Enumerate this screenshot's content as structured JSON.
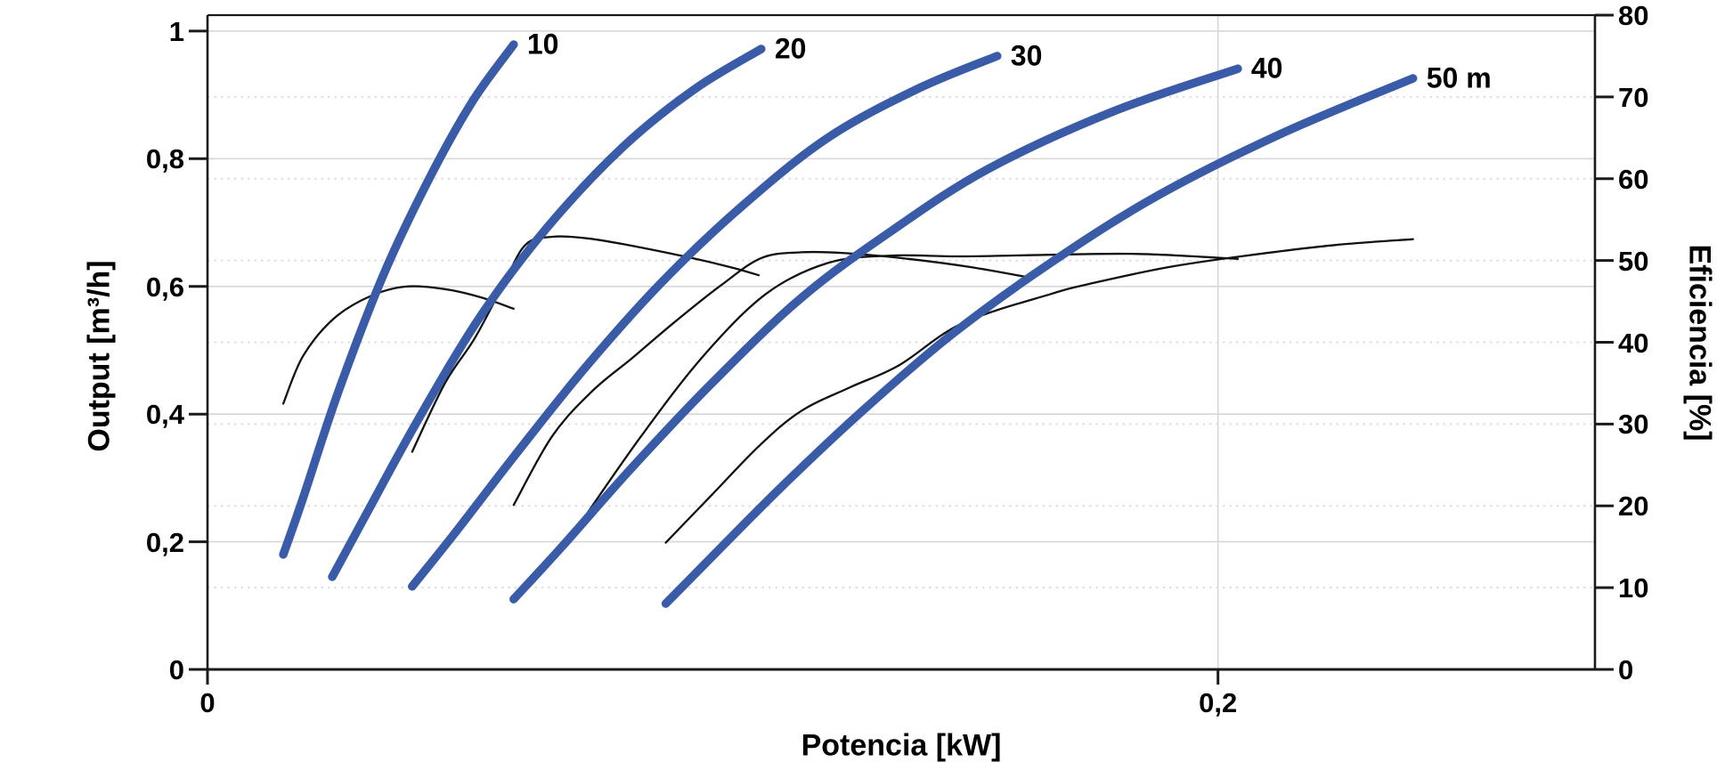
{
  "chart_data": {
    "type": "line",
    "title": "",
    "xlabel": "Potencia [kW]",
    "ylabel_left": "Output [m³/h]",
    "ylabel_right": "Eficiencia [%]",
    "x_range": [
      0,
      0.2746
    ],
    "y_left_range": [
      0,
      1.025
    ],
    "y_right_range": [
      0,
      80
    ],
    "grid": "horizontal solid at left-axis ticks, horizontal dotted at right-axis ticks, vertical solid at x=0.2",
    "legend_position": "none",
    "x_ticks": [
      {
        "value": 0,
        "label": "0"
      },
      {
        "value": 0.2,
        "label": "0,2"
      }
    ],
    "y_left_ticks": [
      {
        "value": 1.0,
        "label": "1"
      },
      {
        "value": 0.8,
        "label": "0,8"
      },
      {
        "value": 0.6,
        "label": "0,6"
      },
      {
        "value": 0.4,
        "label": "0,4"
      },
      {
        "value": 0.2,
        "label": "0,2"
      },
      {
        "value": 0.0,
        "label": "0"
      }
    ],
    "y_right_ticks": [
      {
        "value": 80,
        "label": "80"
      },
      {
        "value": 70,
        "label": "70"
      },
      {
        "value": 60,
        "label": "60"
      },
      {
        "value": 50,
        "label": "50"
      },
      {
        "value": 40,
        "label": "40"
      },
      {
        "value": 30,
        "label": "30"
      },
      {
        "value": 20,
        "label": "20"
      },
      {
        "value": 10,
        "label": "10"
      },
      {
        "value": 0,
        "label": "0"
      }
    ],
    "colors": {
      "head_curve": "#3A5CA8",
      "efficiency_curve": "#111111",
      "grid_solid": "#d7d7d7",
      "grid_dotted": "#dedede",
      "axis": "#1a1a1a"
    },
    "head_curves": [
      {
        "name": "head-10m",
        "label": "10",
        "axis": "left",
        "points": [
          [
            0.015,
            0.18
          ],
          [
            0.0189,
            0.268
          ],
          [
            0.0259,
            0.435
          ],
          [
            0.0347,
            0.616
          ],
          [
            0.0435,
            0.763
          ],
          [
            0.0523,
            0.888
          ],
          [
            0.0606,
            0.979
          ]
        ]
      },
      {
        "name": "head-20m",
        "label": "20",
        "axis": "left",
        "points": [
          [
            0.0247,
            0.145
          ],
          [
            0.0312,
            0.24
          ],
          [
            0.0418,
            0.393
          ],
          [
            0.0541,
            0.554
          ],
          [
            0.0673,
            0.693
          ],
          [
            0.0823,
            0.819
          ],
          [
            0.0964,
            0.909
          ],
          [
            0.1096,
            0.972
          ]
        ]
      },
      {
        "name": "head-30m",
        "label": "30",
        "axis": "left",
        "points": [
          [
            0.0405,
            0.13
          ],
          [
            0.0488,
            0.212
          ],
          [
            0.0611,
            0.338
          ],
          [
            0.0752,
            0.477
          ],
          [
            0.0902,
            0.609
          ],
          [
            0.1061,
            0.728
          ],
          [
            0.1228,
            0.833
          ],
          [
            0.1404,
            0.909
          ],
          [
            0.1563,
            0.961
          ]
        ]
      },
      {
        "name": "head-40m",
        "label": "40",
        "axis": "left",
        "points": [
          [
            0.0606,
            0.11
          ],
          [
            0.07,
            0.191
          ],
          [
            0.0841,
            0.317
          ],
          [
            0.0999,
            0.449
          ],
          [
            0.1175,
            0.582
          ],
          [
            0.1352,
            0.686
          ],
          [
            0.1545,
            0.784
          ],
          [
            0.1792,
            0.874
          ],
          [
            0.2039,
            0.941
          ]
        ]
      },
      {
        "name": "head-50m",
        "label": "50 m",
        "axis": "left",
        "points": [
          [
            0.0907,
            0.103
          ],
          [
            0.0999,
            0.177
          ],
          [
            0.114,
            0.289
          ],
          [
            0.1299,
            0.407
          ],
          [
            0.1475,
            0.526
          ],
          [
            0.1669,
            0.637
          ],
          [
            0.188,
            0.742
          ],
          [
            0.2127,
            0.84
          ],
          [
            0.2386,
            0.926
          ]
        ]
      }
    ],
    "efficiency_curves": [
      {
        "name": "eff-10m",
        "axis": "right",
        "points": [
          [
            0.015,
            32.5
          ],
          [
            0.0189,
            38.3
          ],
          [
            0.025,
            42.9
          ],
          [
            0.0321,
            45.6
          ],
          [
            0.0391,
            46.8
          ],
          [
            0.047,
            46.5
          ],
          [
            0.0541,
            45.5
          ],
          [
            0.0606,
            44.1
          ]
        ]
      },
      {
        "name": "eff-20m",
        "axis": "right",
        "points": [
          [
            0.0405,
            26.6
          ],
          [
            0.047,
            35.0
          ],
          [
            0.0529,
            40.5
          ],
          [
            0.0585,
            47.0
          ],
          [
            0.0629,
            51.9
          ],
          [
            0.0682,
            52.9
          ],
          [
            0.0752,
            52.7
          ],
          [
            0.0823,
            52.0
          ],
          [
            0.0951,
            50.4
          ],
          [
            0.1034,
            49.2
          ],
          [
            0.1091,
            48.2
          ]
        ]
      },
      {
        "name": "eff-30m",
        "axis": "right",
        "points": [
          [
            0.0606,
            20.1
          ],
          [
            0.0682,
            28.5
          ],
          [
            0.0761,
            34.0
          ],
          [
            0.0841,
            38.1
          ],
          [
            0.0929,
            42.7
          ],
          [
            0.1017,
            47.0
          ],
          [
            0.1096,
            50.3
          ],
          [
            0.1175,
            51.0
          ],
          [
            0.1263,
            50.9
          ],
          [
            0.1387,
            50.2
          ],
          [
            0.151,
            49.2
          ],
          [
            0.1628,
            47.9
          ]
        ]
      },
      {
        "name": "eff-40m",
        "axis": "right",
        "points": [
          [
            0.0735,
            17.6
          ],
          [
            0.0858,
            28.5
          ],
          [
            0.0981,
            38.3
          ],
          [
            0.1105,
            45.9
          ],
          [
            0.1228,
            49.7
          ],
          [
            0.1352,
            50.6
          ],
          [
            0.1493,
            50.5
          ],
          [
            0.1669,
            50.7
          ],
          [
            0.1845,
            50.8
          ],
          [
            0.2039,
            50.2
          ]
        ]
      },
      {
        "name": "eff-50m",
        "axis": "right",
        "points": [
          [
            0.0907,
            15.5
          ],
          [
            0.0999,
            21.4
          ],
          [
            0.1093,
            27.4
          ],
          [
            0.1175,
            31.6
          ],
          [
            0.1272,
            34.5
          ],
          [
            0.1369,
            37.2
          ],
          [
            0.1493,
            42.3
          ],
          [
            0.1669,
            45.9
          ],
          [
            0.1757,
            47.3
          ],
          [
            0.1903,
            49.2
          ],
          [
            0.2057,
            50.6
          ],
          [
            0.2233,
            51.9
          ],
          [
            0.2386,
            52.6
          ]
        ]
      }
    ]
  }
}
